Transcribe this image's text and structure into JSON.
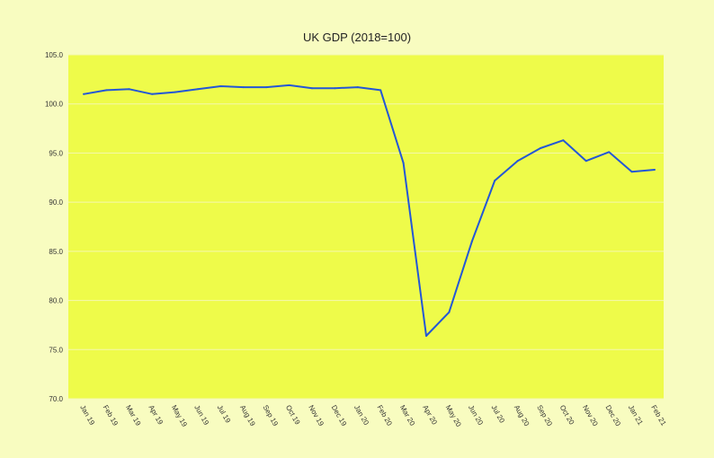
{
  "chart_data": {
    "type": "line",
    "title": "UK GDP (2018=100)",
    "xlabel": "",
    "ylabel": "",
    "ylim": [
      70,
      105
    ],
    "yticks": [
      "70.0",
      "75.0",
      "80.0",
      "85.0",
      "90.0",
      "95.0",
      "100.0",
      "105.0"
    ],
    "ytick_values": [
      70,
      75,
      80,
      85,
      90,
      95,
      100,
      105
    ],
    "categories": [
      "Jan 19",
      "Feb 19",
      "Mar 19",
      "Apr 19",
      "May 19",
      "Jun 19",
      "Jul 19",
      "Aug 19",
      "Sep 19",
      "Oct 19",
      "Nov 19",
      "Dec 19",
      "Jan 20",
      "Feb 20",
      "Mar 20",
      "Apr 20",
      "May 20",
      "Jun 20",
      "Jul 20",
      "Aug 20",
      "Sep 20",
      "Oct 20",
      "Nov 20",
      "Dec 20",
      "Jan 21",
      "Feb 21"
    ],
    "series": [
      {
        "values": [
          101.0,
          101.4,
          101.5,
          101.0,
          101.2,
          101.5,
          101.8,
          101.7,
          101.7,
          101.9,
          101.6,
          101.6,
          101.7,
          101.4,
          94.0,
          76.4,
          78.8,
          86.0,
          92.2,
          94.2,
          95.5,
          96.3,
          94.2,
          95.1,
          93.1,
          93.3
        ]
      }
    ],
    "grid": true,
    "legend": "none",
    "colors": {
      "background": "#f8fcc0",
      "plot_area": "#eefb4a",
      "gridline": "#f4f7b0",
      "line": "#2457d6"
    }
  }
}
